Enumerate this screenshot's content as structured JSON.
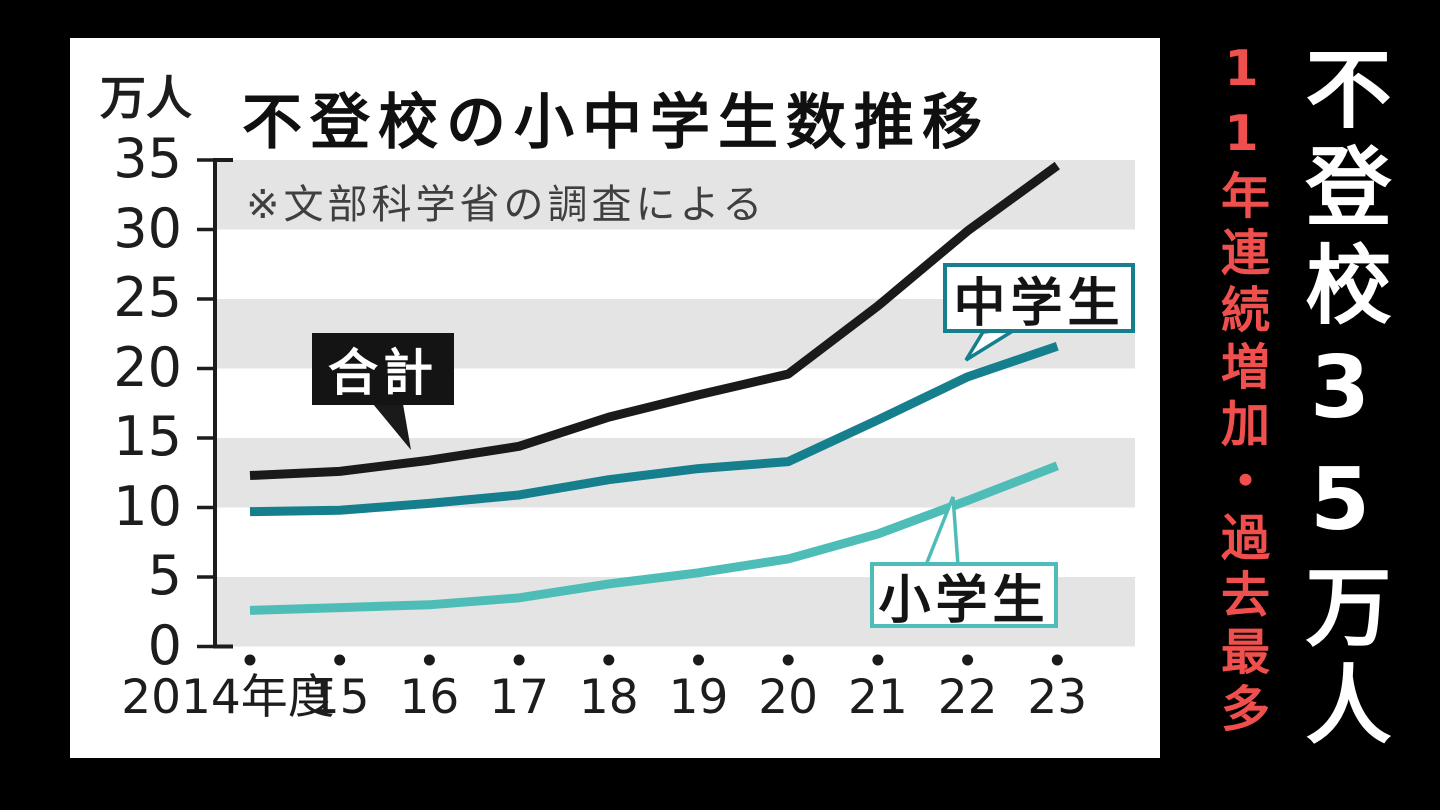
{
  "page": {
    "background": "#000000",
    "panel_background": "#ffffff"
  },
  "headline": {
    "main": "不登校35万人",
    "main_color": "#ffffff",
    "sub": "11年連続増加・過去最多",
    "sub_color": "#f0504d"
  },
  "chart_data": {
    "type": "line",
    "title": "不登校の小中学生数推移",
    "note": "※文部科学省の調査による",
    "unit_label": "万人",
    "xlabel": "年度",
    "categories": [
      "2014年度",
      "15",
      "16",
      "17",
      "18",
      "19",
      "20",
      "21",
      "22",
      "23"
    ],
    "series": [
      {
        "name": "合計",
        "color": "#1a1a1a",
        "values": [
          12.3,
          12.6,
          13.4,
          14.4,
          16.5,
          18.1,
          19.6,
          24.5,
          29.9,
          34.6
        ]
      },
      {
        "name": "中学生",
        "color": "#157f8d",
        "values": [
          9.7,
          9.8,
          10.3,
          10.9,
          12.0,
          12.8,
          13.3,
          16.3,
          19.4,
          21.6
        ]
      },
      {
        "name": "小学生",
        "color": "#4fbdb7",
        "values": [
          2.6,
          2.8,
          3.0,
          3.5,
          4.5,
          5.3,
          6.3,
          8.1,
          10.5,
          13.0
        ]
      }
    ],
    "ylim": [
      0,
      35
    ],
    "ytick_step": 5,
    "yticks": [
      35,
      30,
      25,
      20,
      15,
      10,
      5,
      0
    ],
    "band_color": "#e4e4e4",
    "grid": "banded-stripes",
    "legend_position": "callouts-on-lines",
    "marker_row": "dots-under-axis"
  }
}
